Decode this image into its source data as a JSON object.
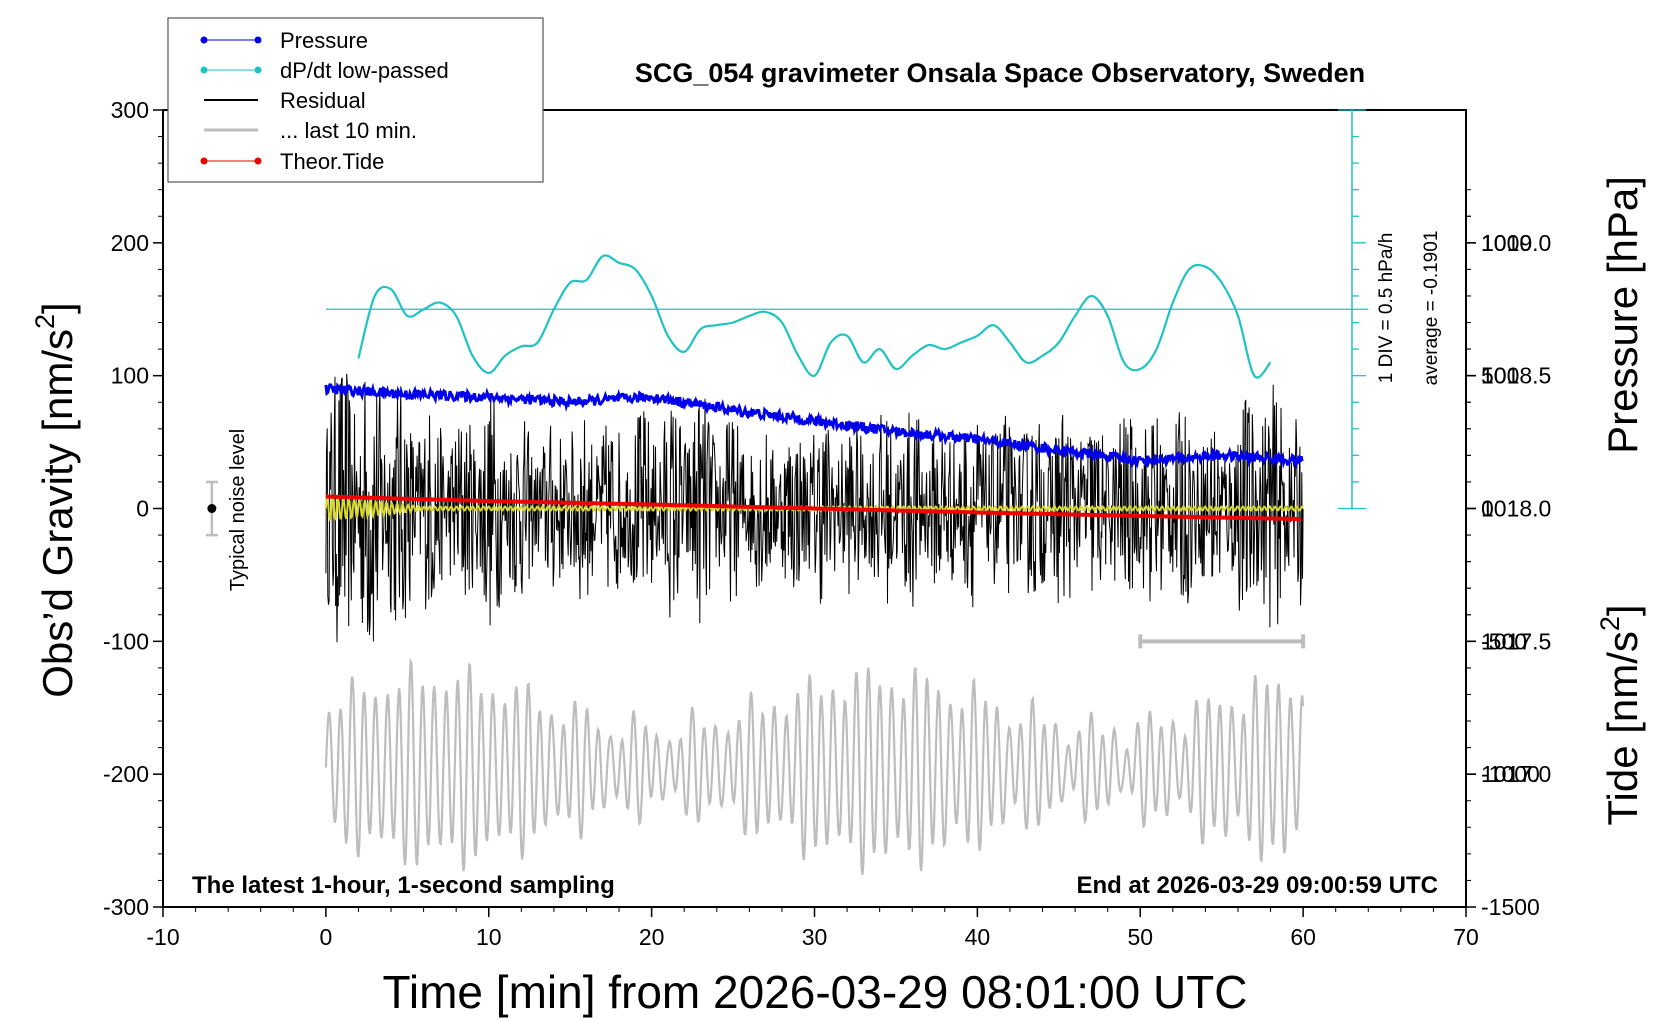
{
  "chart_data": {
    "type": "line",
    "title": "SCG_054 gravimeter Onsala Space Observatory, Sweden",
    "xlabel": "Time [min] from 2026-03-29 08:01:00 UTC",
    "ylabel_left": "Obs’d Gravity [nm/s",
    "ylabel_right_pressure": "Pressure [hPa]",
    "ylabel_right_tide": "Tide [nm/s",
    "superscript": "2",
    "bracket": "]",
    "xlim": [
      -10,
      70
    ],
    "ylim_gravity": [
      -300,
      300
    ],
    "ylim_pressure": [
      1016.5,
      1019.5
    ],
    "ylim_tide": [
      -1500,
      1500
    ],
    "x_ticks": [
      "-10",
      "0",
      "10",
      "20",
      "30",
      "40",
      "50",
      "60",
      "70"
    ],
    "y_ticks_gravity": [
      "300",
      "200",
      "100",
      "0",
      "-100",
      "-200",
      "-300"
    ],
    "y_ticks_pressure": [
      "1019.0",
      "1018.5",
      "1018.0",
      "1017.5",
      "1017.0"
    ],
    "y_ticks_tide": [
      "1000",
      "500",
      "0",
      "-500",
      "-1000",
      "-1500"
    ],
    "legend_placement": "top-left",
    "legend": [
      "Pressure",
      "dP/dt low-passed",
      "Residual",
      "... last 10 min.",
      "Theor.Tide"
    ],
    "annotations": {
      "bottom_left": "The latest 1-hour, 1-second sampling",
      "bottom_right": "End at 2026-03-29 09:00:59 UTC",
      "noise_label": "Typical noise level",
      "dpdt_scale": "1 DIV = 0.5 hPa/h",
      "dpdt_average": "average = -0.1901"
    },
    "noise_level": {
      "x": -7,
      "center": 0,
      "half_range": 20
    },
    "pressure": {
      "x": [
        0,
        5,
        10,
        15,
        20,
        25,
        30,
        35,
        40,
        45,
        50,
        55,
        60
      ],
      "values": [
        1018.45,
        1018.43,
        1018.42,
        1018.4,
        1018.42,
        1018.37,
        1018.33,
        1018.29,
        1018.26,
        1018.22,
        1018.18,
        1018.2,
        1018.18
      ]
    },
    "dpdt_lowpassed": {
      "x": [
        2,
        3,
        4,
        5,
        6,
        7,
        8,
        9,
        10,
        11,
        12,
        13,
        14,
        15,
        16,
        17,
        18,
        19,
        20,
        21,
        22,
        23,
        24,
        25,
        26,
        27,
        28,
        29,
        30,
        31,
        32,
        33,
        34,
        35,
        36,
        37,
        38,
        39,
        40,
        41,
        42,
        43,
        44,
        45,
        46,
        47,
        48,
        49,
        50,
        51,
        52,
        53,
        54,
        55,
        56,
        57,
        58
      ],
      "values": [
        113,
        160,
        165,
        145,
        150,
        155,
        145,
        115,
        102,
        115,
        122,
        125,
        150,
        170,
        172,
        190,
        185,
        180,
        160,
        130,
        118,
        135,
        138,
        140,
        145,
        148,
        140,
        115,
        100,
        125,
        130,
        110,
        120,
        105,
        115,
        123,
        120,
        125,
        130,
        138,
        125,
        110,
        115,
        125,
        145,
        160,
        145,
        110,
        105,
        120,
        155,
        180,
        182,
        170,
        145,
        100,
        110
      ],
      "baseline": 150
    },
    "residual_envelope": {
      "x": [
        0,
        3,
        5,
        8,
        10,
        13,
        15,
        18,
        20,
        23,
        25,
        28,
        30,
        33,
        35,
        38,
        40,
        43,
        45,
        48,
        50,
        53,
        55,
        57.5,
        60
      ],
      "amplitude": [
        110,
        120,
        90,
        70,
        95,
        60,
        75,
        70,
        80,
        90,
        70,
        60,
        75,
        65,
        80,
        70,
        75,
        70,
        80,
        70,
        80,
        75,
        70,
        100,
        75
      ]
    },
    "residual_lowpassed_yellow": {
      "x": [
        0,
        60
      ],
      "values": [
        0,
        0
      ]
    },
    "last_10_min": {
      "x": [
        0,
        60
      ],
      "amplitude_range": [
        -250,
        -140
      ],
      "scale_bar": {
        "x": [
          50,
          60
        ],
        "y": -100
      }
    },
    "theoretical_tide": {
      "x": [
        0,
        10,
        20,
        30,
        40,
        50,
        60
      ],
      "values": [
        45,
        28,
        15,
        0,
        -15,
        -28,
        -40
      ]
    },
    "colors": {
      "pressure": "#0000ee",
      "dpdt": "#1fc3c3",
      "residual": "#000000",
      "last10": "#bdbdbd",
      "tide": "#ee0000",
      "lowpass": "#d8d82a"
    }
  }
}
